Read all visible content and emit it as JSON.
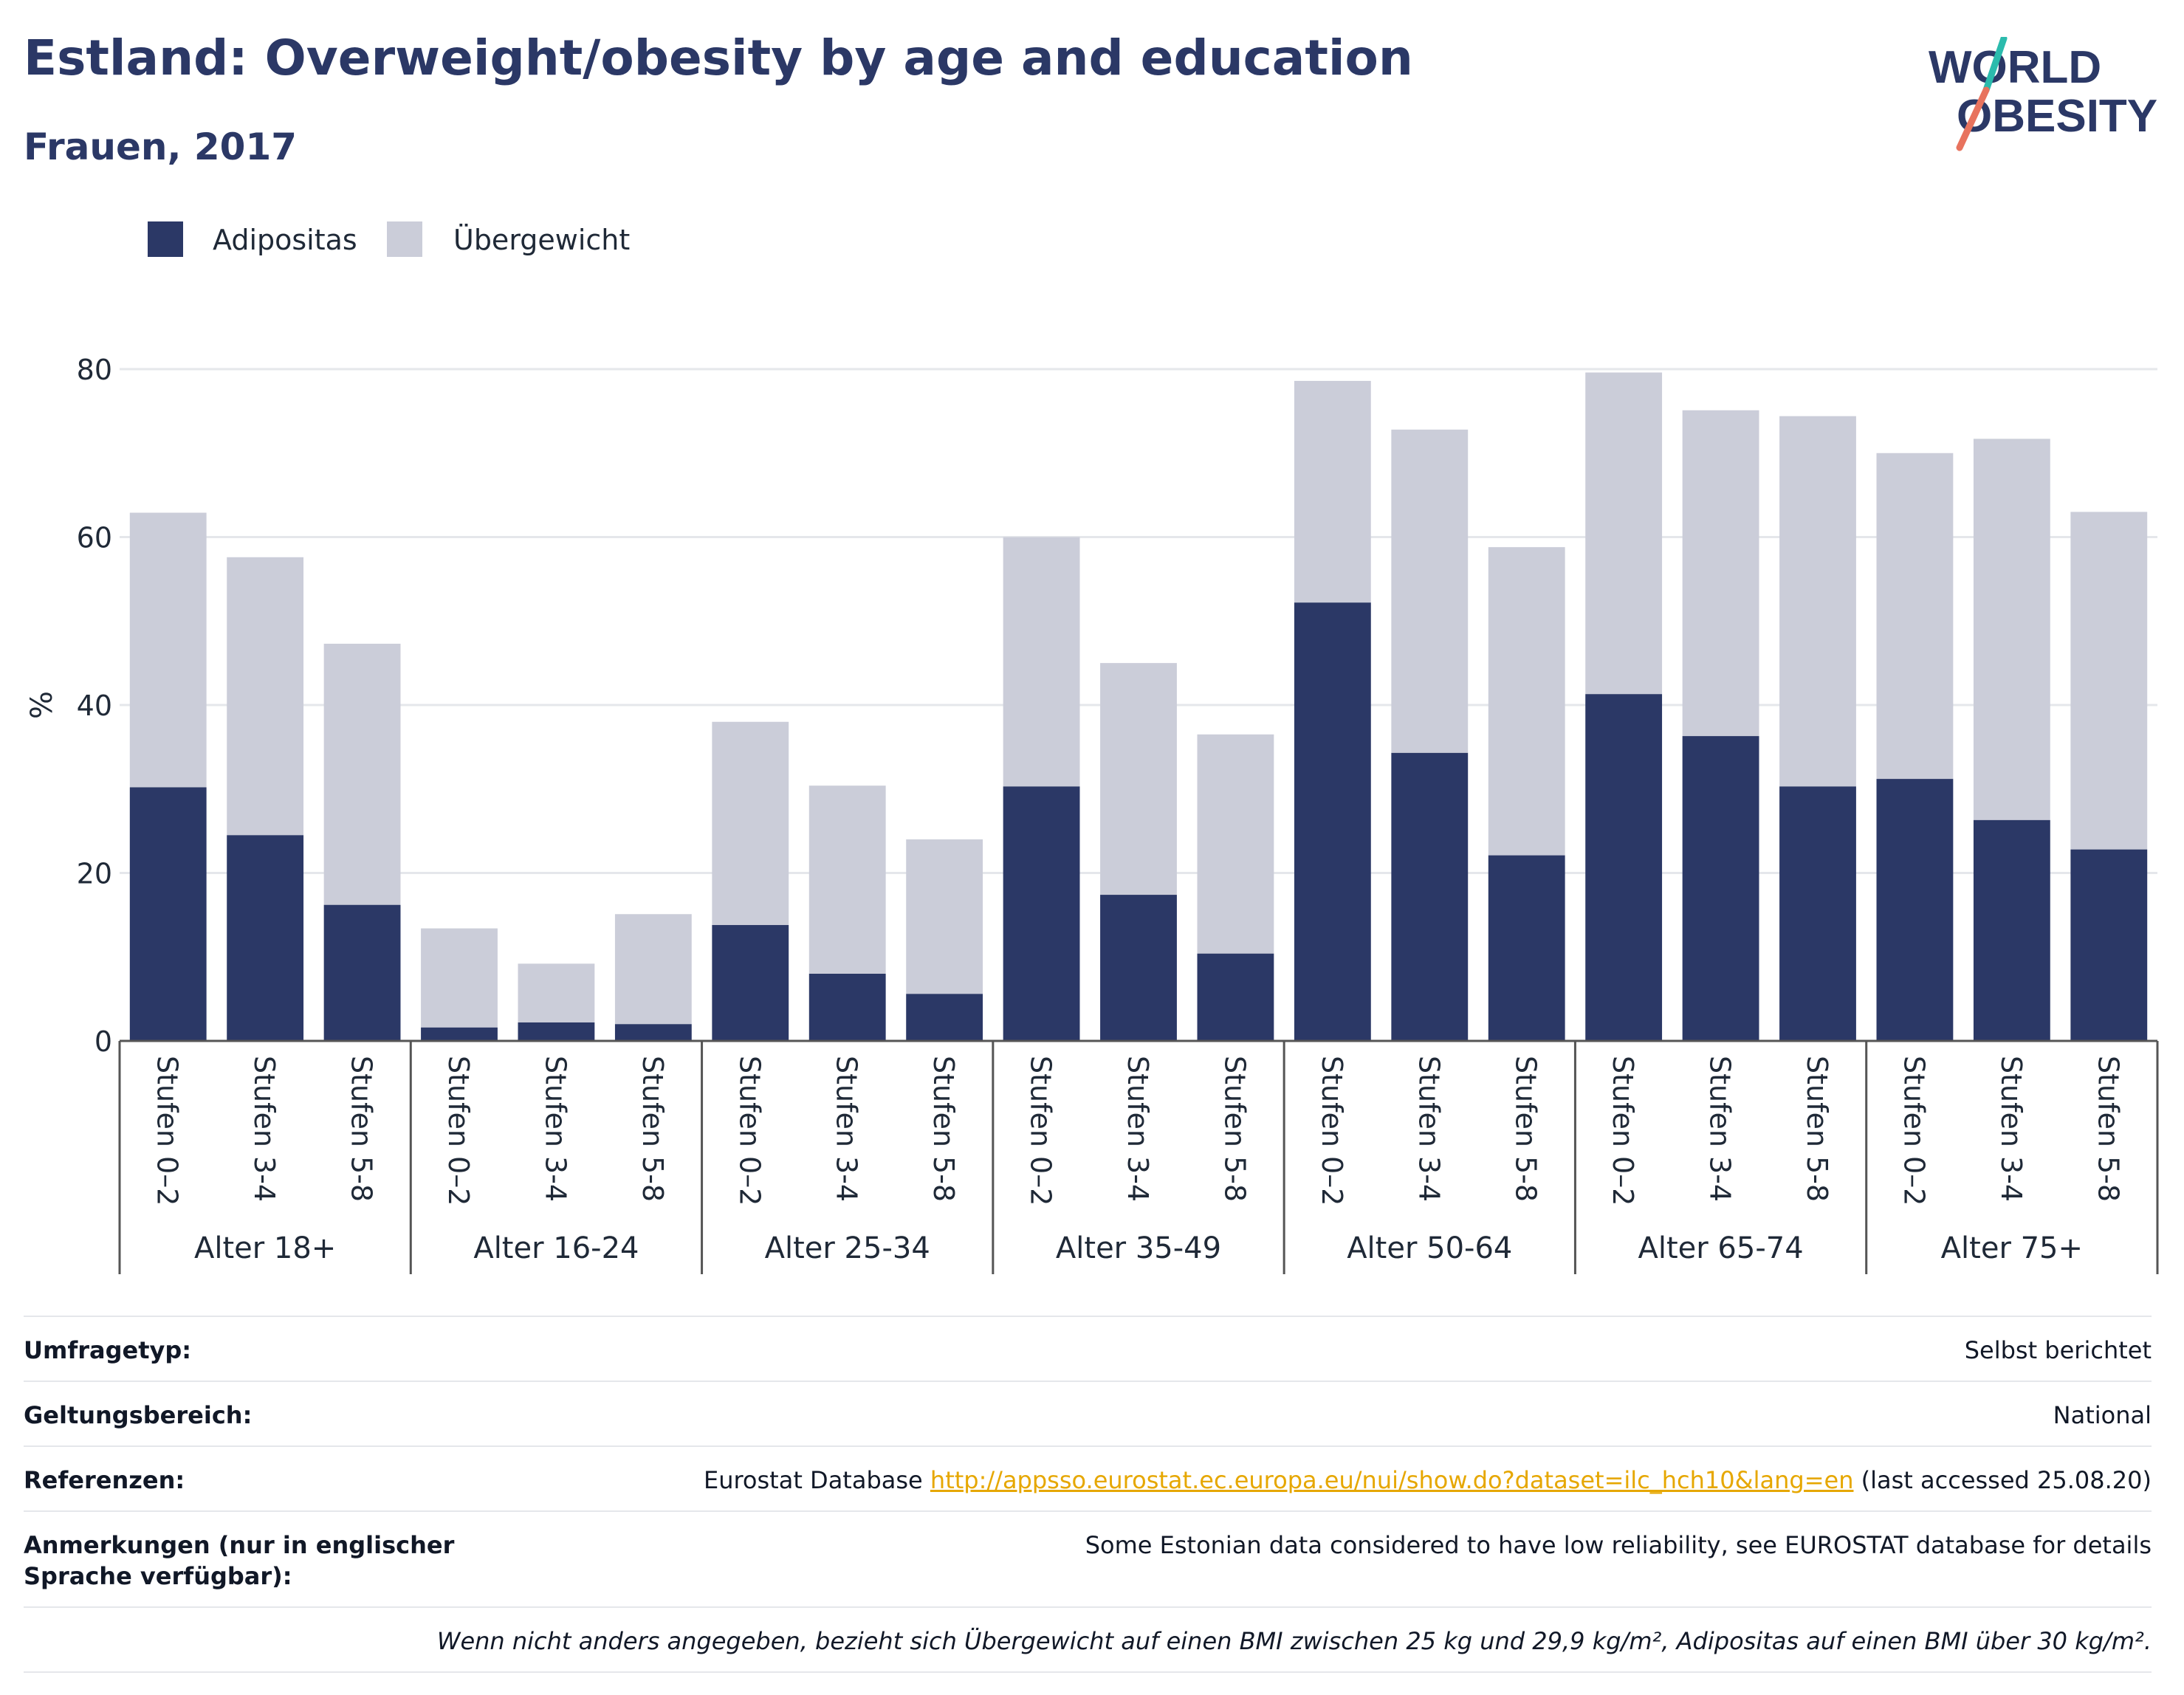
{
  "header": {
    "title": "Estland: Overweight/obesity by age and education",
    "subtitle": "Frauen, 2017",
    "logo_line1": "WORLD",
    "logo_line2": "OBESITY"
  },
  "colors": {
    "obesity": "#2b3866",
    "overweight": "#cbcdd9",
    "title": "#2b3866",
    "logo_teal": "#2bbbad",
    "logo_coral": "#e8735e",
    "link": "#e6a700"
  },
  "chart_data": {
    "type": "bar",
    "stacked": true,
    "ylabel": "%",
    "ylim": [
      0,
      80
    ],
    "yticks": [
      0,
      20,
      40,
      60,
      80
    ],
    "grid": true,
    "legend_position": "top-left",
    "groups": [
      {
        "label": "Alter 18+",
        "categories": [
          "Stufen 0–2",
          "Stufen 3-4",
          "Stufen 5-8"
        ],
        "adipositas": [
          30.2,
          24.5,
          16.2
        ],
        "total": [
          62.9,
          57.6,
          47.3
        ]
      },
      {
        "label": "Alter 16-24",
        "categories": [
          "Stufen 0–2",
          "Stufen 3-4",
          "Stufen 5-8"
        ],
        "adipositas": [
          1.6,
          2.2,
          2.0
        ],
        "total": [
          13.4,
          9.2,
          15.1
        ]
      },
      {
        "label": "Alter 25-34",
        "categories": [
          "Stufen 0–2",
          "Stufen 3-4",
          "Stufen 5-8"
        ],
        "adipositas": [
          13.8,
          8.0,
          5.6
        ],
        "total": [
          38.0,
          30.4,
          24.0
        ]
      },
      {
        "label": "Alter 35-49",
        "categories": [
          "Stufen 0–2",
          "Stufen 3-4",
          "Stufen 5-8"
        ],
        "adipositas": [
          30.3,
          17.4,
          10.4
        ],
        "total": [
          60.0,
          45.0,
          36.5
        ]
      },
      {
        "label": "Alter 50-64",
        "categories": [
          "Stufen 0–2",
          "Stufen 3-4",
          "Stufen 5-8"
        ],
        "adipositas": [
          52.2,
          34.3,
          22.1
        ],
        "total": [
          78.6,
          72.8,
          58.8
        ]
      },
      {
        "label": "Alter 65-74",
        "categories": [
          "Stufen 0–2",
          "Stufen 3-4",
          "Stufen 5-8"
        ],
        "adipositas": [
          41.3,
          36.3,
          30.3
        ],
        "total": [
          79.6,
          75.1,
          74.4
        ]
      },
      {
        "label": "Alter 75+",
        "categories": [
          "Stufen 0–2",
          "Stufen 3-4",
          "Stufen 5-8"
        ],
        "adipositas": [
          31.2,
          26.3,
          22.8
        ],
        "total": [
          70.0,
          71.7,
          63.0
        ]
      }
    ],
    "series": [
      {
        "name": "Adipositas"
      },
      {
        "name": "Übergewicht"
      }
    ]
  },
  "info": {
    "rows": [
      {
        "label": "Umfragetyp:",
        "value": "Selbst berichtet"
      },
      {
        "label": "Geltungsbereich:",
        "value": "National"
      },
      {
        "label": "Referenzen:",
        "value_prefix": "Eurostat Database ",
        "link": "http://appsso.eurostat.ec.europa.eu/nui/show.do?dataset=ilc_hch10&lang=en",
        "value_suffix": " (last accessed 25.08.20)"
      },
      {
        "label": "Anmerkungen (nur in englischer Sprache verfügbar):",
        "value": "Some Estonian data considered to have low reliability, see EUROSTAT database for details"
      }
    ],
    "note": "Wenn nicht anders angegeben, bezieht sich Übergewicht auf einen BMI zwischen 25 kg und 29,9 kg/m², Adipositas auf einen BMI über 30 kg/m²."
  }
}
